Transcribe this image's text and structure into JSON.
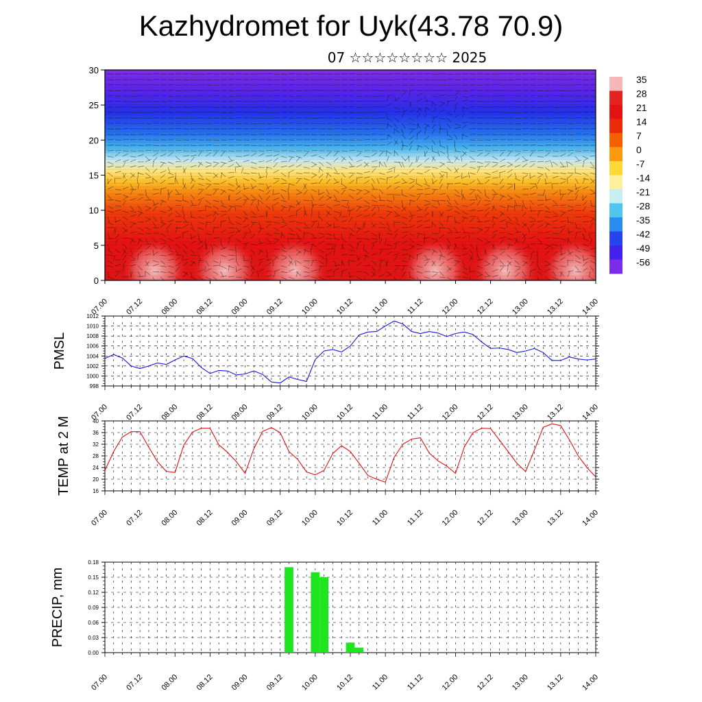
{
  "title": "Kazhydromet for Uyk(43.78 70.9)",
  "subtitle": "07 ☆☆☆☆☆☆☆☆ 2025",
  "colors": {
    "pmsl": "#1414e0",
    "temp": "#e01010",
    "precip": "#1fe51f"
  },
  "chart_data": [
    {
      "type": "heatmap",
      "title": "",
      "ylim": [
        0,
        30
      ],
      "y_ticks": [
        "0",
        "5",
        "10",
        "15",
        "20",
        "25",
        "30"
      ],
      "x_ticks": [
        "07.00",
        "07.12",
        "08.00",
        "08.12",
        "09.00",
        "09.12",
        "10.00",
        "10.12",
        "11.00",
        "11.12",
        "12.00",
        "12.12",
        "13.00",
        "13.12",
        "14.00"
      ],
      "colorbar_labels": [
        "35",
        "28",
        "21",
        "14",
        "7",
        "0",
        "-7",
        "-14",
        "-21",
        "-28",
        "-35",
        "-42",
        "-49",
        "-56"
      ],
      "colorbar_colors": [
        "#f7b7b7",
        "#e62222",
        "#e51212",
        "#ea2a08",
        "#f46000",
        "#fb9a10",
        "#fed835",
        "#fef09c",
        "#c8eef2",
        "#4fc6ee",
        "#2a8df2",
        "#2543ee",
        "#4422ee",
        "#7a2ce8"
      ],
      "overlay": "wind-vectors"
    },
    {
      "type": "line",
      "ylabel": "PMSL",
      "ylim": [
        998,
        1012
      ],
      "y_ticks": [
        "998",
        "1000",
        "1002",
        "1004",
        "1006",
        "1008",
        "1010",
        "1012"
      ],
      "x_ticks": [
        "07.00",
        "07.12",
        "08.00",
        "08.12",
        "09.00",
        "09.12",
        "10.00",
        "10.12",
        "11.00",
        "11.12",
        "12.00",
        "12.12",
        "13.00",
        "13.12",
        "14.00"
      ],
      "x": [
        0,
        3,
        6,
        9,
        12,
        15,
        18,
        21,
        24,
        27,
        30,
        33,
        36,
        39,
        42,
        45,
        48,
        51,
        54,
        57,
        60,
        63,
        66,
        69,
        72,
        75,
        78,
        81,
        84,
        87,
        90,
        93,
        96,
        99,
        102,
        105,
        108,
        111,
        114,
        117,
        120,
        123,
        126,
        129,
        132,
        135,
        138,
        141,
        144,
        147,
        150,
        153,
        156,
        159,
        162,
        165,
        168
      ],
      "series": [
        {
          "values": [
            1003.5,
            1004.3,
            1003.6,
            1002.0,
            1001.5,
            1002.0,
            1002.6,
            1002.3,
            1003.2,
            1004.0,
            1003.5,
            1001.7,
            1000.5,
            1001.1,
            1001.0,
            1000.2,
            1000.4,
            1001.0,
            1000.3,
            998.8,
            998.6,
            999.8,
            999.3,
            998.9,
            1003.3,
            1005.0,
            1005.3,
            1004.8,
            1006.0,
            1008.2,
            1008.8,
            1008.9,
            1010.0,
            1011.0,
            1010.4,
            1008.9,
            1008.5,
            1008.9,
            1008.6,
            1007.9,
            1008.5,
            1008.8,
            1008.3,
            1006.8,
            1005.5,
            1005.6,
            1005.3,
            1004.7,
            1005.0,
            1005.5,
            1004.7,
            1003.1,
            1003.1,
            1003.8,
            1003.4,
            1003.2,
            1003.4
          ]
        }
      ]
    },
    {
      "type": "line",
      "ylabel": "TEMP at 2 M",
      "ylim": [
        16,
        40
      ],
      "y_ticks": [
        "16",
        "20",
        "24",
        "28",
        "32",
        "36",
        "40"
      ],
      "x_ticks": [
        "07.00",
        "07.12",
        "08.00",
        "08.12",
        "09.00",
        "09.12",
        "10.00",
        "10.12",
        "11.00",
        "11.12",
        "12.00",
        "12.12",
        "13.00",
        "13.12",
        "14.00"
      ],
      "x": [
        0,
        3,
        6,
        9,
        12,
        15,
        18,
        21,
        24,
        27,
        30,
        33,
        36,
        39,
        42,
        45,
        48,
        51,
        54,
        57,
        60,
        63,
        66,
        69,
        72,
        75,
        78,
        81,
        84,
        87,
        90,
        93,
        96,
        99,
        102,
        105,
        108,
        111,
        114,
        117,
        120,
        123,
        126,
        129,
        132,
        135,
        138,
        141,
        144,
        147,
        150,
        153,
        156,
        159,
        162,
        165,
        168
      ],
      "series": [
        {
          "values": [
            23.0,
            29.5,
            34.5,
            36.3,
            36.3,
            31.0,
            26.0,
            22.7,
            22.3,
            31.7,
            36.2,
            37.5,
            37.5,
            31.8,
            29.2,
            26.0,
            22.0,
            30.5,
            36.4,
            37.7,
            36.0,
            29.5,
            26.8,
            22.5,
            21.5,
            23.0,
            28.8,
            31.5,
            29.5,
            25.5,
            21.3,
            20.0,
            19.0,
            27.5,
            32.0,
            33.8,
            34.2,
            29.0,
            26.3,
            24.5,
            22.0,
            31.0,
            36.0,
            37.5,
            37.4,
            33.5,
            29.5,
            25.5,
            22.6,
            30.0,
            37.8,
            39.0,
            38.4,
            33.5,
            28.0,
            24.0,
            20.8
          ]
        }
      ]
    },
    {
      "type": "bar",
      "ylabel": "PRECIP, mm",
      "ylim": [
        0,
        0.18
      ],
      "y_ticks": [
        "0.00",
        "0.03",
        "0.06",
        "0.09",
        "0.12",
        "0.15",
        "0.18"
      ],
      "x_ticks": [
        "07.00",
        "07.12",
        "08.00",
        "08.12",
        "09.00",
        "09.12",
        "10.00",
        "10.12",
        "11.00",
        "11.12",
        "12.00",
        "12.12",
        "13.00",
        "13.12",
        "14.00"
      ],
      "bars": [
        {
          "x": 63,
          "value": 0.17
        },
        {
          "x": 72,
          "value": 0.16
        },
        {
          "x": 75,
          "value": 0.15
        },
        {
          "x": 84,
          "value": 0.02
        },
        {
          "x": 87,
          "value": 0.01
        }
      ]
    }
  ]
}
